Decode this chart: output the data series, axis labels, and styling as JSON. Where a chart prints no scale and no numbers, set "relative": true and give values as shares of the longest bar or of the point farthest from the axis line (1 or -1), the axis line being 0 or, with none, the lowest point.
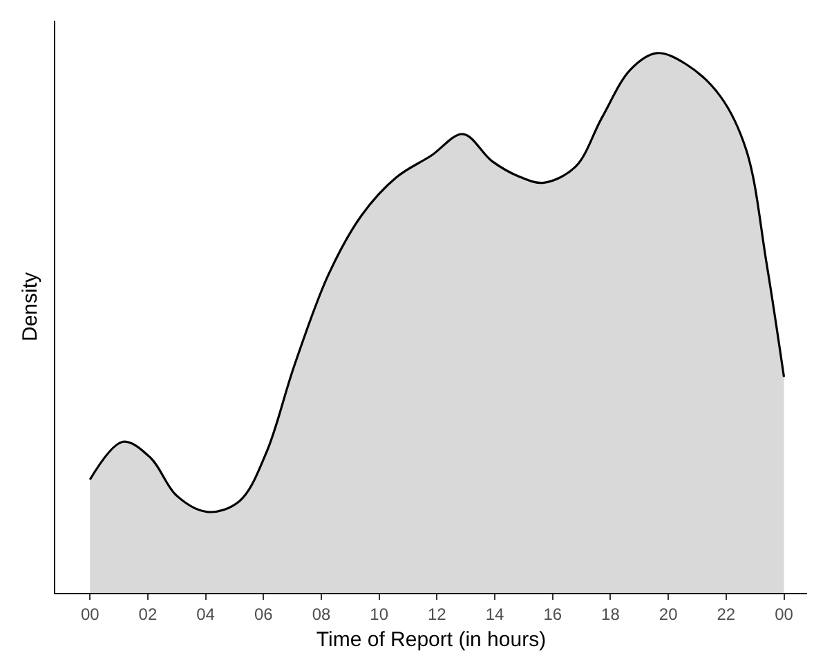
{
  "chart_data": {
    "type": "area",
    "relative": true,
    "xlabel": "Time of Report (in hours)",
    "ylabel": "Density",
    "x": [
      0,
      1.14,
      2.1,
      3.0,
      4.08,
      5.17,
      6.1,
      7.06,
      8.25,
      9.4,
      10.6,
      11.8,
      12.9,
      13.9,
      14.9,
      15.7,
      16.8,
      17.7,
      18.7,
      19.6,
      20.6,
      21.8,
      22.7,
      23.4,
      24
    ],
    "series": [
      {
        "color": "#d9d9d9",
        "values": [
          0.21,
          0.28,
          0.25,
          0.18,
          0.15,
          0.17,
          0.26,
          0.42,
          0.59,
          0.7,
          0.77,
          0.81,
          0.85,
          0.8,
          0.77,
          0.76,
          0.79,
          0.88,
          0.97,
          1,
          0.98,
          0.92,
          0.82,
          0.61,
          0.4
        ]
      }
    ],
    "xlim": [
      -1.2,
      24.8
    ],
    "xticks": [
      {
        "value": 0,
        "label": "00"
      },
      {
        "value": 2,
        "label": "02"
      },
      {
        "value": 4,
        "label": "04"
      },
      {
        "value": 6,
        "label": "06"
      },
      {
        "value": 8,
        "label": "08"
      },
      {
        "value": 10,
        "label": "10"
      },
      {
        "value": 12,
        "label": "12"
      },
      {
        "value": 14,
        "label": "14"
      },
      {
        "value": 16,
        "label": "16"
      },
      {
        "value": 18,
        "label": "18"
      },
      {
        "value": 20,
        "label": "20"
      },
      {
        "value": 22,
        "label": "22"
      },
      {
        "value": 24,
        "label": "00"
      }
    ],
    "marker": "none"
  }
}
